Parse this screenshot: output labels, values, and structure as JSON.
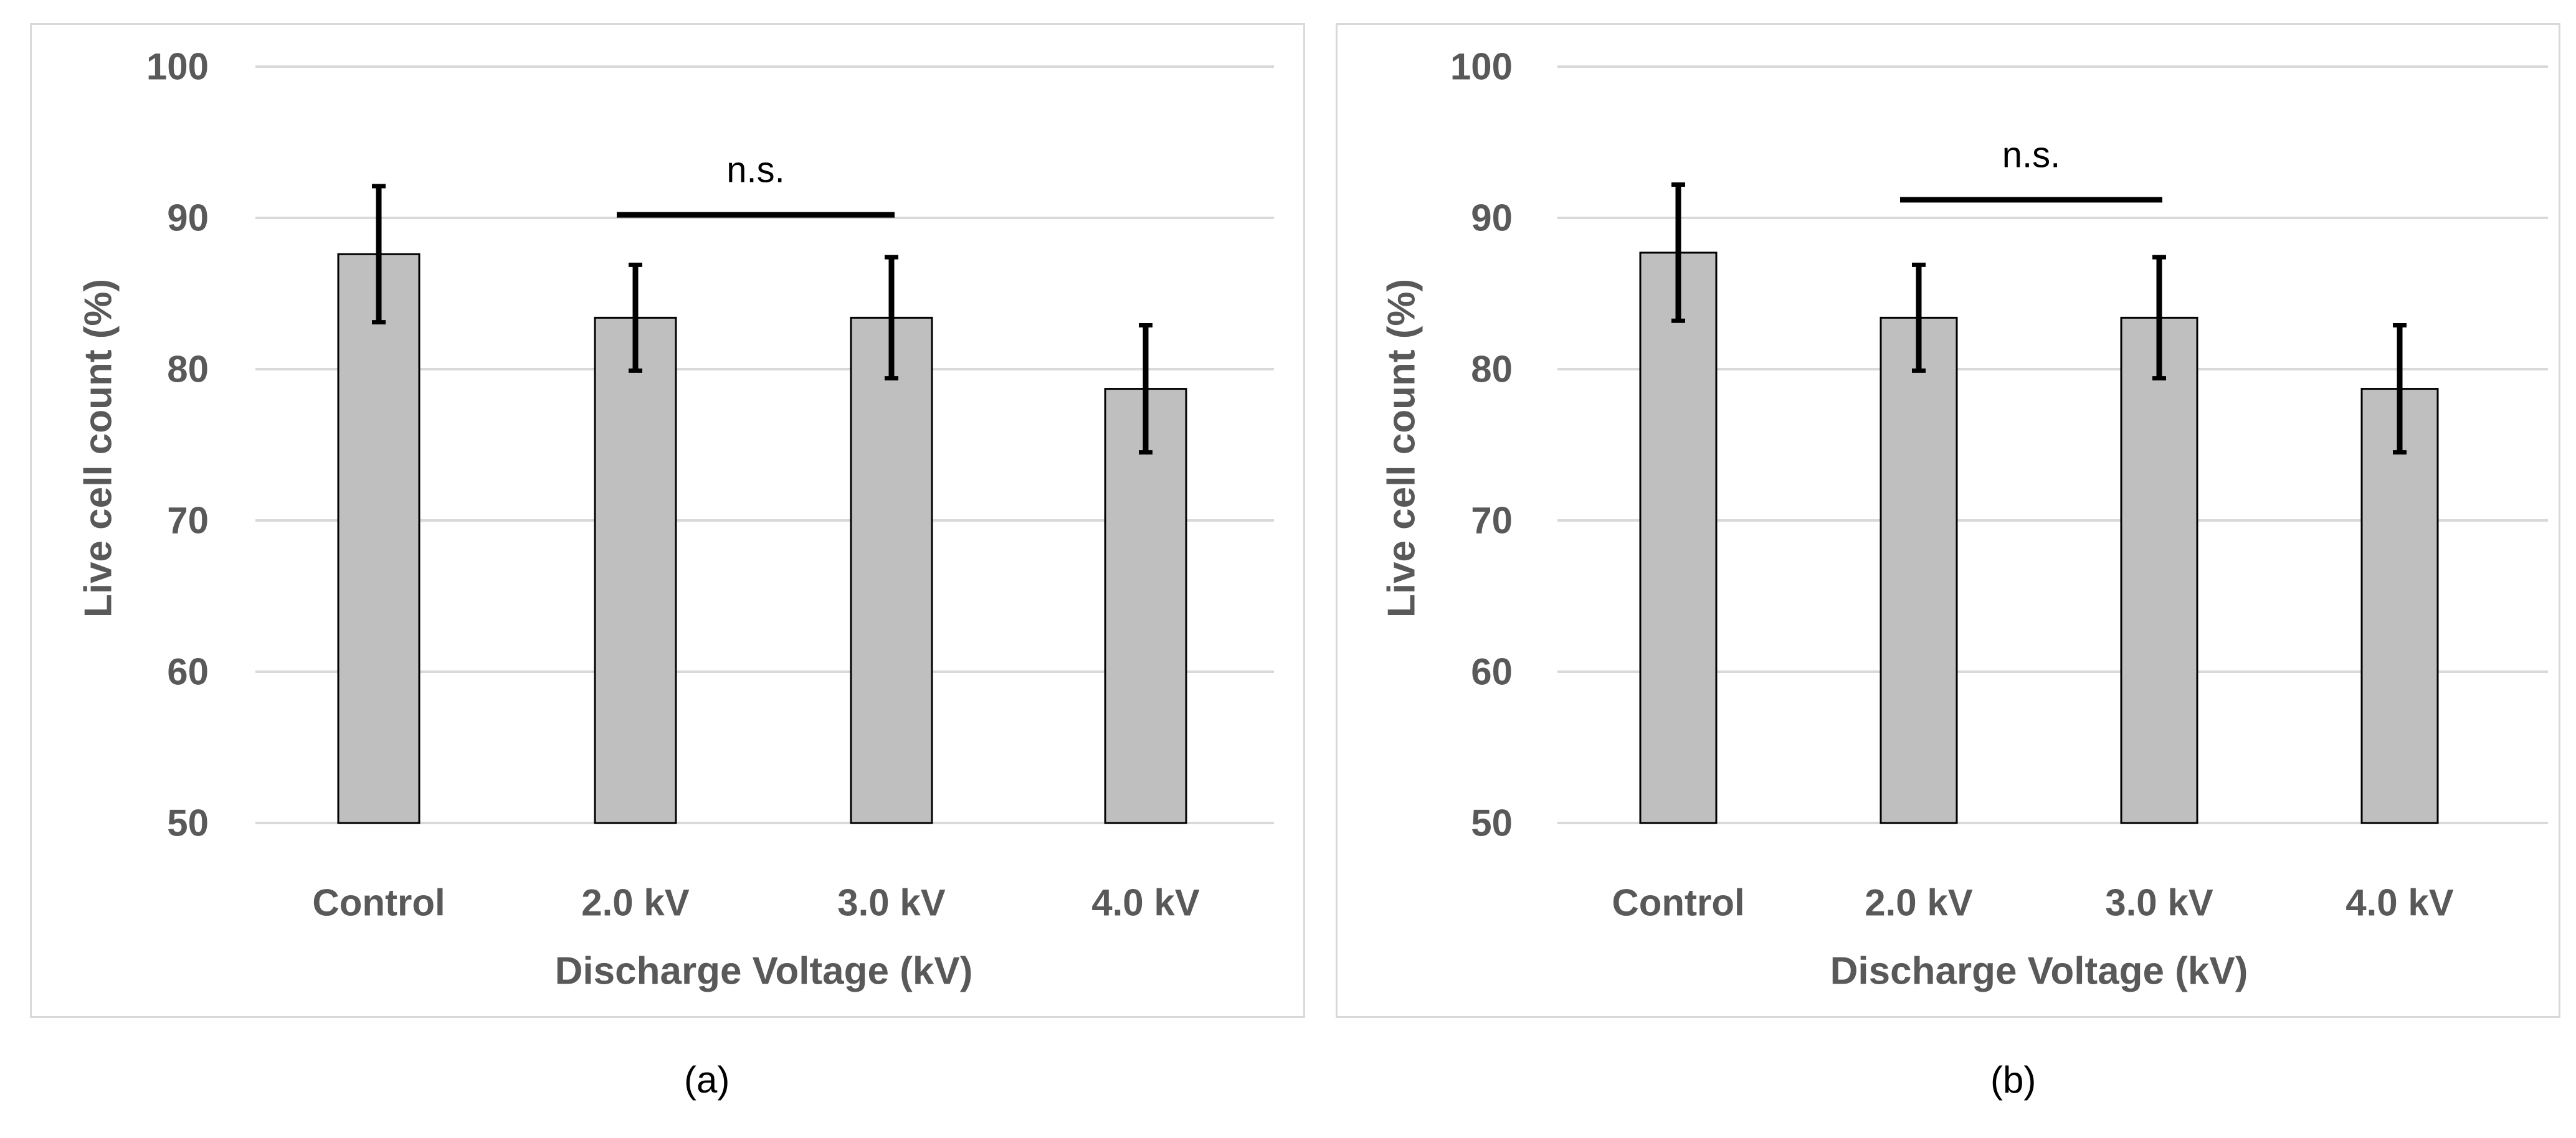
{
  "chart_data": [
    {
      "type": "bar",
      "panel": "(a)",
      "categories": [
        "Control",
        "2.0 kV",
        "3.0 kV",
        "4.0 kV"
      ],
      "values": [
        87.6,
        83.4,
        83.4,
        78.7
      ],
      "error": [
        4.5,
        3.5,
        4.0,
        4.2
      ],
      "xlabel": "Discharge Voltage (kV)",
      "ylabel": "Live cell count (%)",
      "ylim": [
        50,
        100
      ],
      "yticks": [
        50,
        60,
        70,
        80,
        90,
        100
      ],
      "grid": true,
      "bar_color": "#bfbfbf",
      "annotation": {
        "text": "n.s.",
        "from": "2.0 kV",
        "to": "3.0 kV",
        "y": 90.2
      }
    },
    {
      "type": "bar",
      "panel": "(b)",
      "categories": [
        "Control",
        "2.0 kV",
        "3.0 kV",
        "4.0 kV"
      ],
      "values": [
        87.7,
        83.4,
        83.4,
        78.7
      ],
      "error": [
        4.5,
        3.5,
        4.0,
        4.2
      ],
      "xlabel": "Discharge Voltage (kV)",
      "ylabel": "Live cell count (%)",
      "ylim": [
        50,
        100
      ],
      "yticks": [
        50,
        60,
        70,
        80,
        90,
        100
      ],
      "grid": true,
      "bar_color": "#bfbfbf",
      "annotation": {
        "text": "n.s.",
        "from": "2.0 kV",
        "to": "3.0 kV",
        "y": 91.2
      }
    }
  ]
}
